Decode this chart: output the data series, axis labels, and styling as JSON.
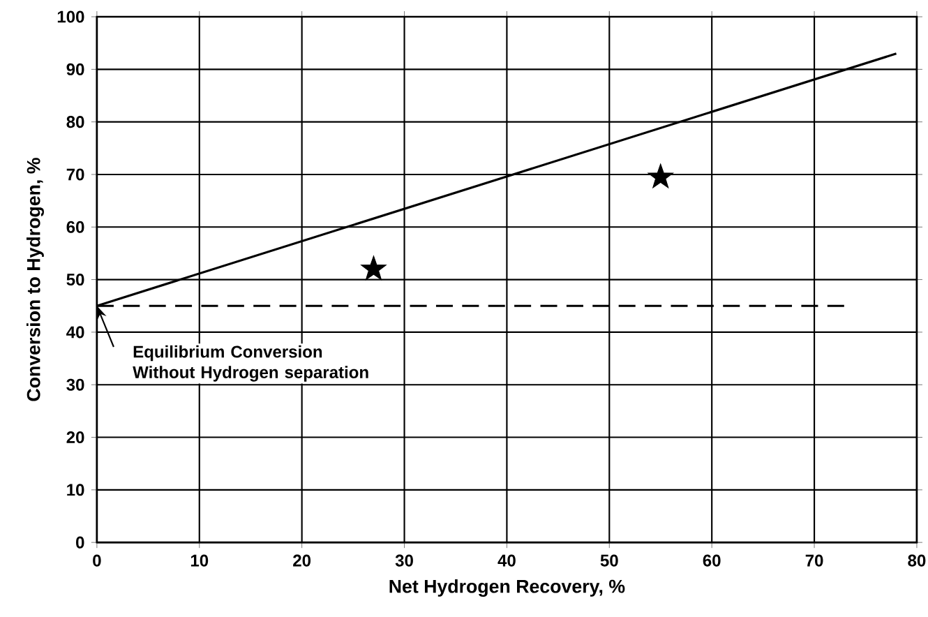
{
  "chart_data": {
    "type": "line",
    "xlabel": "Net Hydrogen Recovery, %",
    "ylabel": "Conversion to Hydrogen, %",
    "xlim": [
      0,
      80
    ],
    "ylim": [
      0,
      100
    ],
    "xticks": [
      0,
      10,
      20,
      30,
      40,
      50,
      60,
      70,
      80
    ],
    "yticks": [
      0,
      10,
      20,
      30,
      40,
      50,
      60,
      70,
      80,
      90,
      100
    ],
    "grid": true,
    "series": [
      {
        "color": "#000000",
        "x": [
          0,
          78
        ],
        "values": [
          45,
          93
        ],
        "line_style": "solid",
        "marker": "none"
      },
      {
        "color": "#000000",
        "x": [
          0,
          73
        ],
        "values": [
          45,
          45
        ],
        "line_style": "dashed",
        "marker": "none"
      },
      {
        "type": "scatter",
        "color": "#000000",
        "x": [
          27,
          55
        ],
        "values": [
          52,
          69.5
        ],
        "marker": "star"
      }
    ],
    "annotations": [
      {
        "text": "Equilibrium Conversion Without Hydrogen separation",
        "x": 0,
        "y": 45
      }
    ]
  }
}
